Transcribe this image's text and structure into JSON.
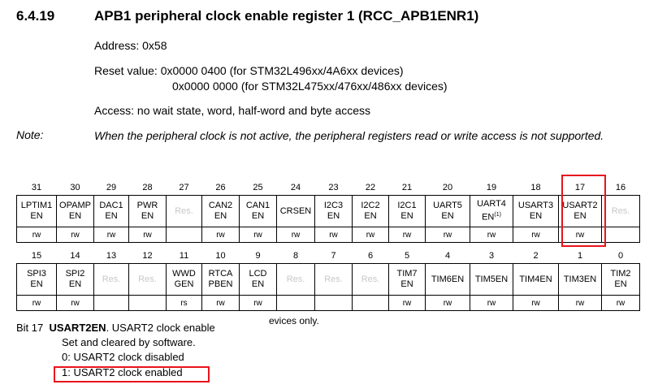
{
  "section": {
    "number": "6.4.19",
    "title": "APB1 peripheral clock enable register 1 (RCC_APB1ENR1)"
  },
  "address": "Address: 0x58",
  "reset": {
    "line1": "Reset value: 0x0000 0400 (for STM32L496xx/4A6xx devices)",
    "line2": "0x0000 0000 (for STM32L475xx/476xx/486xx devices)"
  },
  "access": "Access: no wait state, word, half-word and byte access",
  "note": {
    "label": "Note:",
    "text": "When the peripheral clock is not active, the peripheral registers read or write access is not supported."
  },
  "register_upper": [
    {
      "bit": "31",
      "name": [
        "LPTIM1",
        "EN"
      ],
      "access": "rw"
    },
    {
      "bit": "30",
      "name": [
        "OPAMP",
        "EN"
      ],
      "access": "rw"
    },
    {
      "bit": "29",
      "name": [
        "DAC1",
        "EN"
      ],
      "access": "rw"
    },
    {
      "bit": "28",
      "name": [
        "PWR",
        "EN"
      ],
      "access": "rw"
    },
    {
      "bit": "27",
      "name": [
        "Res."
      ],
      "access": "",
      "reserved": true
    },
    {
      "bit": "26",
      "name": [
        "CAN2",
        "EN"
      ],
      "access": "rw"
    },
    {
      "bit": "25",
      "name": [
        "CAN1",
        "EN"
      ],
      "access": "rw"
    },
    {
      "bit": "24",
      "name": [
        "CRSEN"
      ],
      "access": "rw"
    },
    {
      "bit": "23",
      "name": [
        "I2C3",
        "EN"
      ],
      "access": "rw"
    },
    {
      "bit": "22",
      "name": [
        "I2C2",
        "EN"
      ],
      "access": "rw"
    },
    {
      "bit": "21",
      "name": [
        "I2C1",
        "EN"
      ],
      "access": "rw"
    },
    {
      "bit": "20",
      "name": [
        "UART5",
        "EN"
      ],
      "access": "rw"
    },
    {
      "bit": "19",
      "name": [
        "UART4",
        "EN"
      ],
      "sup": "(1)",
      "access": "rw"
    },
    {
      "bit": "18",
      "name": [
        "USART3",
        "EN"
      ],
      "access": "rw"
    },
    {
      "bit": "17",
      "name": [
        "USART2",
        "EN"
      ],
      "access": "rw"
    },
    {
      "bit": "16",
      "name": [
        "Res."
      ],
      "access": "",
      "reserved": true
    }
  ],
  "register_lower": [
    {
      "bit": "15",
      "name": [
        "SPI3",
        "EN"
      ],
      "access": "rw"
    },
    {
      "bit": "14",
      "name": [
        "SPI2",
        "EN"
      ],
      "access": "rw"
    },
    {
      "bit": "13",
      "name": [
        "Res."
      ],
      "access": "",
      "reserved": true
    },
    {
      "bit": "12",
      "name": [
        "Res."
      ],
      "access": "",
      "reserved": true
    },
    {
      "bit": "11",
      "name": [
        "WWD",
        "GEN"
      ],
      "access": "rs"
    },
    {
      "bit": "10",
      "name": [
        "RTCA",
        "PBEN"
      ],
      "access": "rw"
    },
    {
      "bit": "9",
      "name": [
        "LCD",
        "EN"
      ],
      "access": "rw"
    },
    {
      "bit": "8",
      "name": [
        "Res."
      ],
      "access": "",
      "reserved": true
    },
    {
      "bit": "7",
      "name": [
        "Res."
      ],
      "access": "",
      "reserved": true
    },
    {
      "bit": "6",
      "name": [
        "Res."
      ],
      "access": "",
      "reserved": true
    },
    {
      "bit": "5",
      "name": [
        "TIM7",
        "EN"
      ],
      "access": "rw"
    },
    {
      "bit": "4",
      "name": [
        "TIM6EN"
      ],
      "access": "rw"
    },
    {
      "bit": "3",
      "name": [
        "TIM5EN"
      ],
      "access": "rw"
    },
    {
      "bit": "2",
      "name": [
        "TIM4EN"
      ],
      "access": "rw"
    },
    {
      "bit": "1",
      "name": [
        "TIM3EN"
      ],
      "access": "rw"
    },
    {
      "bit": "0",
      "name": [
        "TIM2",
        "EN"
      ],
      "access": "rw"
    }
  ],
  "footnote_fragment": "evices only.",
  "bit_description": {
    "bit_label": "Bit 17",
    "field": "USART2EN",
    "title": "USART2 clock enable",
    "line1": "Set and cleared by software.",
    "line2": "0: USART2 clock disabled",
    "line3": "1: USART2 clock enabled"
  },
  "highlight_color": "#e8141c",
  "reserved_color": "#c8c8c8"
}
